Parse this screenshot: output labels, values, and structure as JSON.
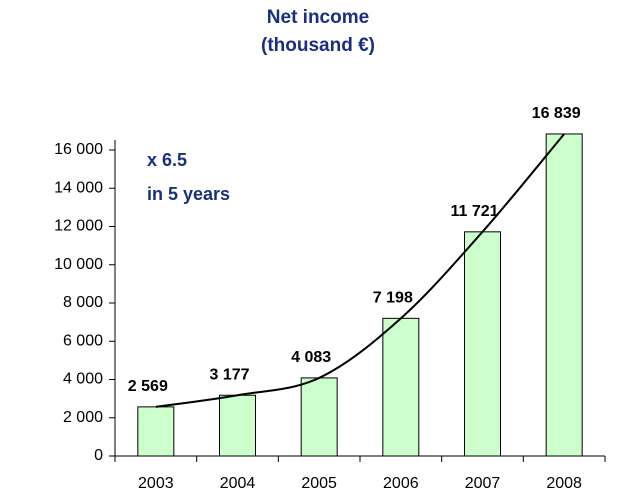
{
  "chart_data": {
    "type": "bar",
    "title": "Net income",
    "subtitle": "(thousand €)",
    "annotation": [
      "x 6.5",
      "in 5 years"
    ],
    "categories": [
      "2003",
      "2004",
      "2005",
      "2006",
      "2007",
      "2008"
    ],
    "values": [
      2569,
      3177,
      4083,
      7198,
      11721,
      16839
    ],
    "value_labels": [
      "2 569",
      "3 177",
      "4 083",
      "7 198",
      "11 721",
      "16 839"
    ],
    "color": "#ccffcc",
    "ylim": [
      0,
      16000
    ],
    "yticks": [
      0,
      {
        "value": 2000,
        "label": "2 000"
      },
      {
        "value": 4000,
        "label": "4 000"
      },
      {
        "value": 6000,
        "label": "6 000"
      },
      {
        "value": 8000,
        "label": "8 000"
      },
      {
        "value": 10000,
        "label": "10 000"
      },
      {
        "value": 12000,
        "label": "12 000"
      },
      {
        "value": 14000,
        "label": "14 000"
      },
      {
        "value": 16000,
        "label": "16 000"
      }
    ]
  }
}
